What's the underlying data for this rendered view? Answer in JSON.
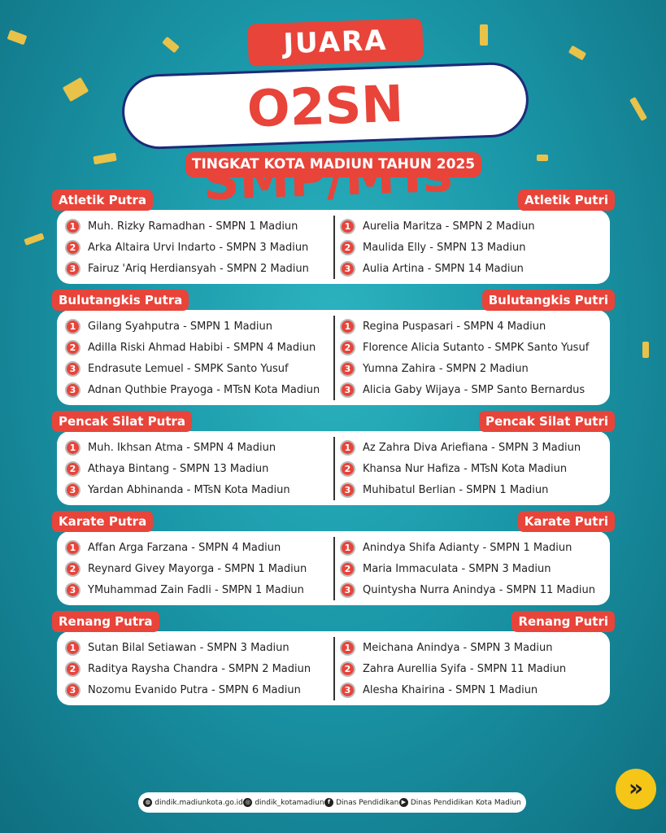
{
  "header": {
    "juara": "JUARA",
    "title": "O2SN SMP/MTs",
    "subtitle": "TINGKAT KOTA MADIUN TAHUN 2025"
  },
  "colors": {
    "accent": "#e8443a",
    "background": "#1a97a8",
    "frame": "#1d2a78",
    "next": "#f5c518"
  },
  "sections": [
    {
      "left": {
        "title": "Atletik Putra",
        "winners": [
          {
            "rank": "1",
            "text": "Muh. Rizky Ramadhan - SMPN 1 Madiun"
          },
          {
            "rank": "2",
            "text": "Arka Altaira Urvi Indarto - SMPN 3 Madiun"
          },
          {
            "rank": "3",
            "text": "Fairuz 'Ariq Herdiansyah  - SMPN 2 Madiun"
          }
        ]
      },
      "right": {
        "title": "Atletik Putri",
        "winners": [
          {
            "rank": "1",
            "text": "Aurelia Maritza - SMPN 2 Madiun"
          },
          {
            "rank": "2",
            "text": "Maulida Elly - SMPN 13 Madiun"
          },
          {
            "rank": "3",
            "text": "Aulia Artina - SMPN 14 Madiun"
          }
        ]
      }
    },
    {
      "left": {
        "title": "Bulutangkis Putra",
        "winners": [
          {
            "rank": "1",
            "text": "Gilang Syahputra - SMPN 1 Madiun"
          },
          {
            "rank": "2",
            "text": "Adilla Riski Ahmad Habibi - SMPN 4 Madiun"
          },
          {
            "rank": "3",
            "text": "Endrasute Lemuel - SMPK Santo Yusuf"
          },
          {
            "rank": "3",
            "text": "Adnan Quthbie Prayoga - MTsN Kota Madiun"
          }
        ]
      },
      "right": {
        "title": "Bulutangkis Putri",
        "winners": [
          {
            "rank": "1",
            "text": "Regina Puspasari - SMPN 4 Madiun"
          },
          {
            "rank": "2",
            "text": "Florence Alicia Sutanto - SMPK Santo Yusuf"
          },
          {
            "rank": "3",
            "text": "Yumna Zahira - SMPN 2 Madiun"
          },
          {
            "rank": "3",
            "text": "Alicia Gaby Wijaya - SMP Santo Bernardus"
          }
        ]
      }
    },
    {
      "left": {
        "title": "Pencak Silat Putra",
        "winners": [
          {
            "rank": "1",
            "text": "Muh. Ikhsan Atma - SMPN 4 Madiun"
          },
          {
            "rank": "2",
            "text": "Athaya Bintang - SMPN 13 Madiun"
          },
          {
            "rank": "3",
            "text": "Yardan Abhinanda - MTsN Kota Madiun"
          }
        ]
      },
      "right": {
        "title": "Pencak Silat Putri",
        "winners": [
          {
            "rank": "1",
            "text": "Az Zahra Diva Ariefiana - SMPN 3 Madiun"
          },
          {
            "rank": "2",
            "text": "Khansa Nur Hafiza - MTsN Kota Madiun"
          },
          {
            "rank": "3",
            "text": "Muhibatul Berlian - SMPN 1 Madiun"
          }
        ]
      }
    },
    {
      "left": {
        "title": "Karate Putra",
        "winners": [
          {
            "rank": "1",
            "text": "Affan Arga Farzana - SMPN 4 Madiun"
          },
          {
            "rank": "2",
            "text": "Reynard Givey Mayorga - SMPN 1 Madiun"
          },
          {
            "rank": "3",
            "text": "YMuhammad Zain Fadli - SMPN 1 Madiun"
          }
        ]
      },
      "right": {
        "title": "Karate Putri",
        "winners": [
          {
            "rank": "1",
            "text": "Anindya Shifa Adianty - SMPN 1 Madiun"
          },
          {
            "rank": "2",
            "text": "Maria Immaculata - SMPN 3 Madiun"
          },
          {
            "rank": "3",
            "text": "Quintysha Nurra Anindya - SMPN 11 Madiun"
          }
        ]
      }
    },
    {
      "left": {
        "title": "Renang Putra",
        "winners": [
          {
            "rank": "1",
            "text": "Sutan Bilal Setiawan - SMPN 3 Madiun"
          },
          {
            "rank": "2",
            "text": "Raditya Raysha Chandra - SMPN 2 Madiun"
          },
          {
            "rank": "3",
            "text": "Nozomu Evanido Putra - SMPN 6 Madiun"
          }
        ]
      },
      "right": {
        "title": "Renang Putri",
        "winners": [
          {
            "rank": "1",
            "text": "Meichana Anindya - SMPN 3 Madiun"
          },
          {
            "rank": "2",
            "text": "Zahra Aurellia Syifa  - SMPN 11 Madiun"
          },
          {
            "rank": "3",
            "text": "Alesha Khairina - SMPN 1 Madiun"
          }
        ]
      }
    }
  ],
  "footer": [
    {
      "icon": "globe-icon",
      "glyph": "◍",
      "text": "dindik.madiunkota.go.id"
    },
    {
      "icon": "instagram-icon",
      "glyph": "◎",
      "text": "dindik_kotamadiun"
    },
    {
      "icon": "facebook-icon",
      "glyph": "f",
      "text": "Dinas Pendidikan"
    },
    {
      "icon": "youtube-icon",
      "glyph": "▶",
      "text": "Dinas Pendidikan Kota Madiun"
    }
  ],
  "next_icon": "double-chevron-right-icon",
  "next_glyph": "»"
}
